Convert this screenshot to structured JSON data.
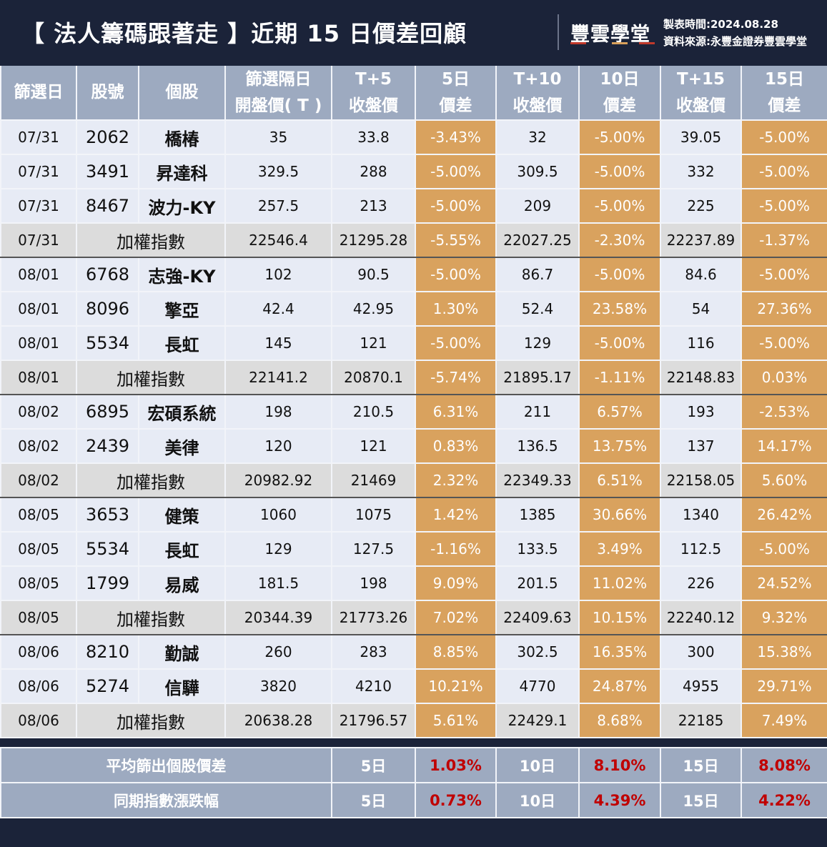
{
  "header": {
    "title": "【 法人籌碼跟著走 】近期 15 日價差回顧",
    "brand": "豐雲學堂",
    "made_time": "製表時間:2024.08.28",
    "source": "資料來源:永豐金證券豐雲學堂"
  },
  "columns": [
    {
      "line1": "篩選日",
      "line2": ""
    },
    {
      "line1": "股號",
      "line2": ""
    },
    {
      "line1": "個股",
      "line2": ""
    },
    {
      "line1": "篩選隔日",
      "line2": "開盤價( T )"
    },
    {
      "line1": "T+5",
      "line2": "收盤價"
    },
    {
      "line1": "5日",
      "line2": "價差"
    },
    {
      "line1": "T+10",
      "line2": "收盤價"
    },
    {
      "line1": "10日",
      "line2": "價差"
    },
    {
      "line1": "T+15",
      "line2": "收盤價"
    },
    {
      "line1": "15日",
      "line2": "價差"
    }
  ],
  "rows": [
    {
      "date": "07/31",
      "code": "2062",
      "name": "橋椿",
      "open": "35",
      "t5": "33.8",
      "d5": "-3.43%",
      "t10": "32",
      "d10": "-5.00%",
      "t15": "39.05",
      "d15": "-5.00%"
    },
    {
      "date": "07/31",
      "code": "3491",
      "name": "昇達科",
      "open": "329.5",
      "t5": "288",
      "d5": "-5.00%",
      "t10": "309.5",
      "d10": "-5.00%",
      "t15": "332",
      "d15": "-5.00%"
    },
    {
      "date": "07/31",
      "code": "8467",
      "name": "波力-KY",
      "open": "257.5",
      "t5": "213",
      "d5": "-5.00%",
      "t10": "209",
      "d10": "-5.00%",
      "t15": "225",
      "d15": "-5.00%"
    },
    {
      "date": "07/31",
      "name": "加權指數",
      "open": "22546.4",
      "t5": "21295.28",
      "d5": "-5.55%",
      "t10": "22027.25",
      "d10": "-2.30%",
      "t15": "22237.89",
      "d15": "-1.37%"
    },
    {
      "date": "08/01",
      "code": "6768",
      "name": "志強-KY",
      "open": "102",
      "t5": "90.5",
      "d5": "-5.00%",
      "t10": "86.7",
      "d10": "-5.00%",
      "t15": "84.6",
      "d15": "-5.00%"
    },
    {
      "date": "08/01",
      "code": "8096",
      "name": "擎亞",
      "open": "42.4",
      "t5": "42.95",
      "d5": "1.30%",
      "t10": "52.4",
      "d10": "23.58%",
      "t15": "54",
      "d15": "27.36%"
    },
    {
      "date": "08/01",
      "code": "5534",
      "name": "長虹",
      "open": "145",
      "t5": "121",
      "d5": "-5.00%",
      "t10": "129",
      "d10": "-5.00%",
      "t15": "116",
      "d15": "-5.00%"
    },
    {
      "date": "08/01",
      "name": "加權指數",
      "open": "22141.2",
      "t5": "20870.1",
      "d5": "-5.74%",
      "t10": "21895.17",
      "d10": "-1.11%",
      "t15": "22148.83",
      "d15": "0.03%"
    },
    {
      "date": "08/02",
      "code": "6895",
      "name": "宏碩系統",
      "open": "198",
      "t5": "210.5",
      "d5": "6.31%",
      "t10": "211",
      "d10": "6.57%",
      "t15": "193",
      "d15": "-2.53%"
    },
    {
      "date": "08/02",
      "code": "2439",
      "name": "美律",
      "open": "120",
      "t5": "121",
      "d5": "0.83%",
      "t10": "136.5",
      "d10": "13.75%",
      "t15": "137",
      "d15": "14.17%"
    },
    {
      "date": "08/02",
      "name": "加權指數",
      "open": "20982.92",
      "t5": "21469",
      "d5": "2.32%",
      "t10": "22349.33",
      "d10": "6.51%",
      "t15": "22158.05",
      "d15": "5.60%"
    },
    {
      "date": "08/05",
      "code": "3653",
      "name": "健策",
      "open": "1060",
      "t5": "1075",
      "d5": "1.42%",
      "t10": "1385",
      "d10": "30.66%",
      "t15": "1340",
      "d15": "26.42%"
    },
    {
      "date": "08/05",
      "code": "5534",
      "name": "長虹",
      "open": "129",
      "t5": "127.5",
      "d5": "-1.16%",
      "t10": "133.5",
      "d10": "3.49%",
      "t15": "112.5",
      "d15": "-5.00%"
    },
    {
      "date": "08/05",
      "code": "1799",
      "name": "易威",
      "open": "181.5",
      "t5": "198",
      "d5": "9.09%",
      "t10": "201.5",
      "d10": "11.02%",
      "t15": "226",
      "d15": "24.52%"
    },
    {
      "date": "08/05",
      "name": "加權指數",
      "open": "20344.39",
      "t5": "21773.26",
      "d5": "7.02%",
      "t10": "22409.63",
      "d10": "10.15%",
      "t15": "22240.12",
      "d15": "9.32%"
    },
    {
      "date": "08/06",
      "code": "8210",
      "name": "勤誠",
      "open": "260",
      "t5": "283",
      "d5": "8.85%",
      "t10": "302.5",
      "d10": "16.35%",
      "t15": "300",
      "d15": "15.38%"
    },
    {
      "date": "08/06",
      "code": "5274",
      "name": "信驊",
      "open": "3820",
      "t5": "4210",
      "d5": "10.21%",
      "t10": "4770",
      "d10": "24.87%",
      "t15": "4955",
      "d15": "29.71%"
    },
    {
      "date": "08/06",
      "name": "加權指數",
      "open": "20638.28",
      "t5": "21796.57",
      "d5": "5.61%",
      "t10": "22429.1",
      "d10": "8.68%",
      "t15": "22185",
      "d15": "7.49%"
    }
  ],
  "summary": [
    {
      "label": "平均篩出個股價差",
      "p5": "5日",
      "v5": "1.03%",
      "p10": "10日",
      "v10": "8.10%",
      "p15": "15日",
      "v15": "8.08%"
    },
    {
      "label": "同期指數漲跌幅",
      "p5": "5日",
      "v5": "0.73%",
      "p10": "10日",
      "v10": "4.39%",
      "p15": "15日",
      "v15": "4.22%"
    }
  ],
  "colors": {
    "navy": "#1b2339",
    "header_blue": "#9daac0",
    "row_bg": "#e7ebf5",
    "index_bg": "#dcdcdc",
    "pct_orange": "#d9a25e",
    "summary_red": "#c00000"
  }
}
